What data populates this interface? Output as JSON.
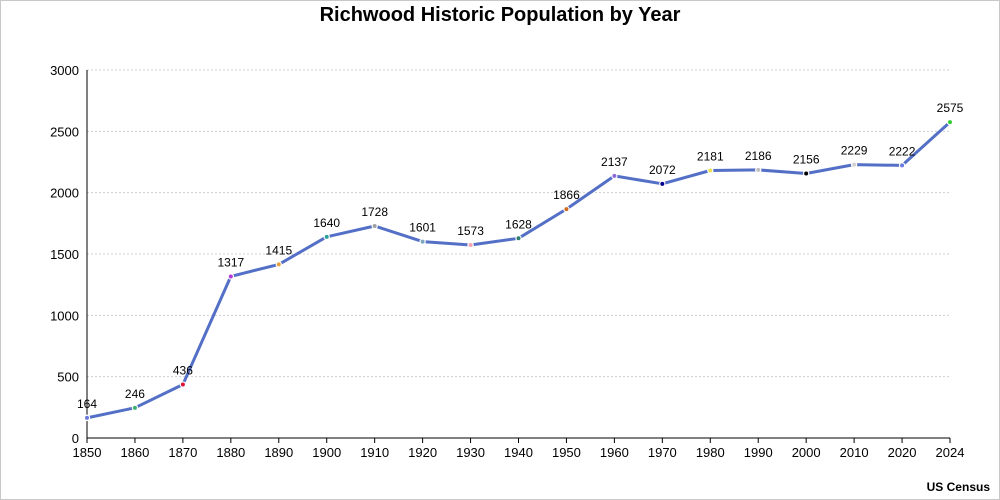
{
  "source": "US Census",
  "chart_data": {
    "type": "line",
    "title": "Richwood Historic Population by Year",
    "xlabel": "",
    "ylabel": "",
    "ylim": [
      0,
      3000
    ],
    "yticks": [
      0,
      500,
      1000,
      1500,
      2000,
      2500,
      3000
    ],
    "grid": "horizontal dotted",
    "line_color": "#5470c6",
    "categories": [
      "1850",
      "1860",
      "1870",
      "1880",
      "1890",
      "1900",
      "1910",
      "1920",
      "1930",
      "1940",
      "1950",
      "1960",
      "1970",
      "1980",
      "1990",
      "2000",
      "2010",
      "2020",
      "2024"
    ],
    "series": [
      {
        "values": [
          164,
          246,
          436,
          1317,
          1415,
          1640,
          1728,
          1601,
          1573,
          1628,
          1866,
          2137,
          2072,
          2181,
          2186,
          2156,
          2229,
          2222,
          2575
        ],
        "marker_colors": [
          "#6a7ae0",
          "#3cb371",
          "#dc143c",
          "#b23ad6",
          "#e6a23c",
          "#2aa198",
          "#a0a0a0",
          "#7fa6c0",
          "#f4a3b0",
          "#2e7d6e",
          "#d2691e",
          "#8c6bd6",
          "#00008b",
          "#e8e050",
          "#c0c0c0",
          "#000000",
          "#d0d0d0",
          "#6a7ae0",
          "#32cd32"
        ]
      }
    ]
  }
}
